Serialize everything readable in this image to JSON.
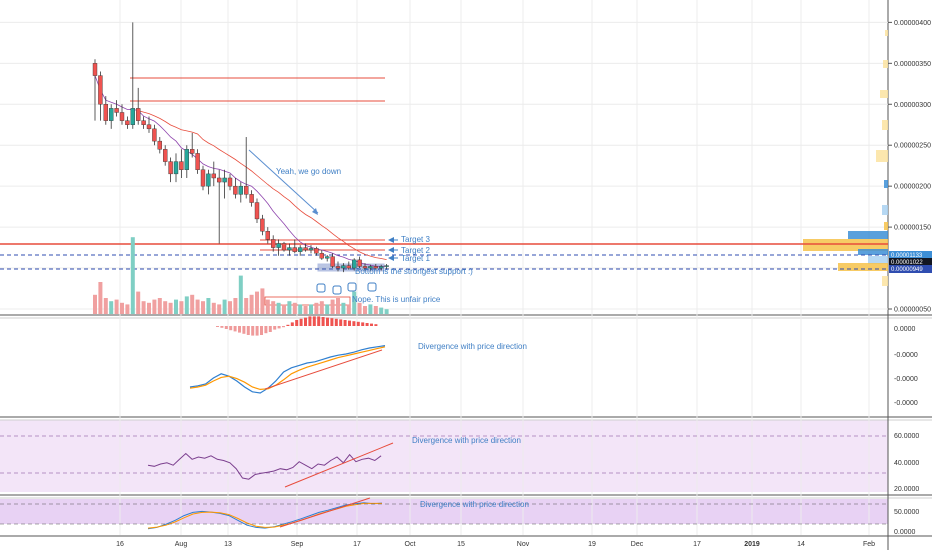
{
  "chart_data": {
    "type": "candlestick",
    "price_axis_ticks": [
      "0.00000400",
      "0.00000350",
      "0.00000300",
      "0.00000250",
      "0.00000200",
      "0.00000150",
      "0.00000050"
    ],
    "price_labels": {
      "blue": "0.00001133",
      "dark": "0.00001022",
      "dark2": "0.00000949"
    },
    "ylim_price": [
      5e-07,
      4.2e-06
    ],
    "time_axis": [
      "16",
      "Aug",
      "13",
      "Sep",
      "17",
      "Oct",
      "15",
      "Nov",
      "19",
      "Dec",
      "17",
      "2019",
      "14",
      "Feb"
    ],
    "annotations": {
      "yeah": "Yeah, we go down",
      "target3": "Target 3",
      "target2": "Target 2",
      "target1": "Target 1",
      "bottom": "Bottom is the strongest support :)",
      "nope": "Nope. This is unfair price"
    },
    "macd_hist_axis": [
      "0.0000",
      "-0.0000",
      "-0.0000",
      "-0.0000"
    ],
    "macd_note": "Divergence with price direction",
    "rsi_axis": [
      "60.0000",
      "40.0000",
      "20.0000"
    ],
    "rsi_note": "Divergence with price direction",
    "stoch_axis": [
      "50.0000",
      "0.0000"
    ],
    "stoch_note": "Divergence with price direction",
    "candles": [
      [
        3.5,
        3.55,
        2.8,
        3.35
      ],
      [
        3.35,
        3.4,
        2.8,
        3.0
      ],
      [
        3.0,
        3.1,
        2.75,
        2.8
      ],
      [
        2.8,
        3.0,
        2.7,
        2.95
      ],
      [
        2.95,
        3.05,
        2.85,
        2.9
      ],
      [
        2.9,
        3.0,
        2.75,
        2.8
      ],
      [
        2.8,
        2.85,
        2.7,
        2.75
      ],
      [
        2.75,
        4.0,
        2.7,
        2.95
      ],
      [
        2.95,
        3.2,
        2.75,
        2.8
      ],
      [
        2.8,
        2.85,
        2.7,
        2.75
      ],
      [
        2.75,
        2.85,
        2.65,
        2.7
      ],
      [
        2.7,
        2.75,
        2.5,
        2.55
      ],
      [
        2.55,
        2.6,
        2.4,
        2.45
      ],
      [
        2.45,
        2.5,
        2.25,
        2.3
      ],
      [
        2.3,
        2.35,
        2.05,
        2.15
      ],
      [
        2.15,
        2.4,
        2.05,
        2.3
      ],
      [
        2.3,
        2.45,
        2.1,
        2.2
      ],
      [
        2.2,
        2.5,
        2.1,
        2.45
      ],
      [
        2.45,
        2.65,
        2.35,
        2.4
      ],
      [
        2.4,
        2.45,
        2.15,
        2.2
      ],
      [
        2.2,
        2.25,
        1.95,
        2.0
      ],
      [
        2.0,
        2.2,
        1.9,
        2.15
      ],
      [
        2.15,
        2.3,
        2.0,
        2.1
      ],
      [
        2.1,
        2.2,
        1.3,
        2.05
      ],
      [
        2.05,
        2.2,
        1.85,
        2.1
      ],
      [
        2.1,
        2.15,
        1.95,
        2.0
      ],
      [
        2.0,
        2.1,
        1.85,
        1.9
      ],
      [
        1.9,
        2.05,
        1.8,
        2.0
      ],
      [
        2.0,
        2.6,
        1.85,
        1.9
      ],
      [
        1.9,
        1.95,
        1.75,
        1.8
      ],
      [
        1.8,
        1.85,
        1.55,
        1.6
      ],
      [
        1.6,
        1.65,
        1.4,
        1.45
      ],
      [
        1.45,
        1.5,
        1.3,
        1.35
      ],
      [
        1.35,
        1.4,
        1.2,
        1.25
      ],
      [
        1.25,
        1.35,
        1.15,
        1.3
      ],
      [
        1.3,
        1.32,
        1.2,
        1.22
      ],
      [
        1.22,
        1.3,
        1.15,
        1.25
      ],
      [
        1.25,
        1.35,
        1.18,
        1.2
      ],
      [
        1.2,
        1.28,
        1.15,
        1.25
      ],
      [
        1.25,
        1.3,
        1.2,
        1.22
      ],
      [
        1.22,
        1.28,
        1.18,
        1.24
      ],
      [
        1.24,
        1.26,
        1.15,
        1.18
      ],
      [
        1.18,
        1.22,
        1.1,
        1.12
      ],
      [
        1.12,
        1.16,
        1.08,
        1.14
      ],
      [
        1.14,
        1.18,
        1.0,
        1.02
      ],
      [
        1.02,
        1.08,
        0.96,
        1.0
      ],
      [
        1.0,
        1.06,
        0.95,
        1.03
      ],
      [
        1.03,
        1.08,
        0.98,
        1.0
      ],
      [
        1.0,
        1.12,
        0.97,
        1.1
      ],
      [
        1.1,
        1.14,
        1.0,
        1.02
      ],
      [
        1.02,
        1.06,
        0.97,
        1.0
      ],
      [
        1.0,
        1.04,
        0.96,
        1.02
      ],
      [
        1.02,
        1.05,
        0.98,
        1.0
      ],
      [
        1.0,
        1.04,
        0.97,
        1.02
      ],
      [
        1.02,
        1.05,
        0.99,
        1.03
      ]
    ],
    "volume": [
      12,
      20,
      10,
      8,
      9,
      7,
      6,
      48,
      14,
      8,
      7,
      9,
      10,
      8,
      7,
      9,
      8,
      11,
      12,
      9,
      8,
      10,
      7,
      6,
      9,
      8,
      10,
      24,
      10,
      12,
      14,
      16,
      9,
      8,
      7,
      6,
      8,
      7,
      6,
      5,
      6,
      7,
      8,
      6,
      9,
      10,
      7,
      6,
      14,
      7,
      5,
      6,
      5,
      4,
      3
    ],
    "macd_hist": [
      -0.5,
      -1.5,
      -2.5,
      -3.5,
      -4.5,
      -5.5,
      -6.5,
      -7.5,
      -8,
      -8,
      -7.5,
      -6,
      -5,
      -3,
      -2,
      -1,
      1,
      3,
      5,
      6,
      7,
      8,
      8,
      8,
      7.5,
      7,
      6.5,
      6,
      5.5,
      5,
      4.5,
      4,
      3.5,
      3,
      2.5,
      2,
      1.5
    ],
    "macd": [
      0.3,
      0.32,
      0.35,
      0.45,
      0.52,
      0.48,
      0.4,
      0.3,
      0.22,
      0.2,
      0.28,
      0.4,
      0.55,
      0.62,
      0.66,
      0.7,
      0.72,
      0.76,
      0.8,
      0.83,
      0.85,
      0.88,
      0.92,
      0.95,
      0.97,
      0.99
    ],
    "signal": [
      0.28,
      0.3,
      0.33,
      0.4,
      0.46,
      0.48,
      0.44,
      0.38,
      0.3,
      0.26,
      0.27,
      0.33,
      0.42,
      0.52,
      0.58,
      0.63,
      0.67,
      0.71,
      0.75,
      0.79,
      0.82,
      0.85,
      0.88,
      0.91,
      0.94,
      0.97
    ],
    "rsi": [
      33,
      32,
      34,
      35,
      33,
      38,
      43,
      38,
      40,
      39,
      41,
      38,
      37,
      35,
      30,
      22,
      21,
      25,
      26,
      27,
      28,
      30,
      29,
      31,
      36,
      33,
      30,
      34,
      33,
      37,
      40,
      35,
      42,
      36,
      38,
      39,
      37,
      41
    ],
    "stoch_k": [
      4,
      8,
      18,
      30,
      45,
      55,
      58,
      56,
      52,
      45,
      30,
      15,
      8,
      6,
      10,
      18,
      26,
      35,
      45,
      55,
      62,
      70,
      78,
      82,
      85,
      82,
      84
    ],
    "stoch_d": [
      6,
      9,
      15,
      25,
      38,
      50,
      55,
      56,
      54,
      48,
      36,
      22,
      12,
      8,
      9,
      15,
      22,
      30,
      40,
      50,
      58,
      66,
      74,
      79,
      83,
      83,
      83
    ]
  }
}
